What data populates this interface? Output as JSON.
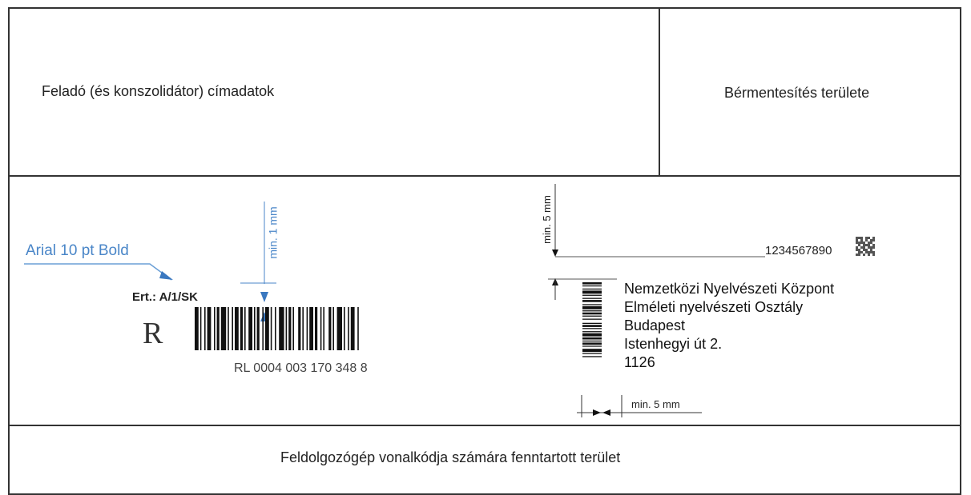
{
  "sections": {
    "sender": "Feladó (és konszolidátor) címadatok",
    "postage": "Bérmentesítés területe",
    "machine": "Feldolgozógép vonalkódja számára fenntartott terület"
  },
  "annotations": {
    "font_spec": "Arial 10 pt Bold",
    "min_1mm": "min. 1 mm",
    "min_5mm_vertical": "min. 5 mm",
    "min_5mm_horizontal": "min. 5 mm"
  },
  "registered": {
    "service_code": "Ert.: A/1/SK",
    "letter": "R",
    "barcode_text": "RL 0004 003 170 348 8"
  },
  "recipient": {
    "id_number": "1234567890",
    "lines": [
      "Nemzetközi Nyelvészeti Központ",
      "Elméleti nyelvészeti Osztály",
      "Budapest",
      "Istenhegyi út 2.",
      "1126"
    ]
  },
  "colors": {
    "annotation": "#4a86c8",
    "border": "#333333"
  }
}
